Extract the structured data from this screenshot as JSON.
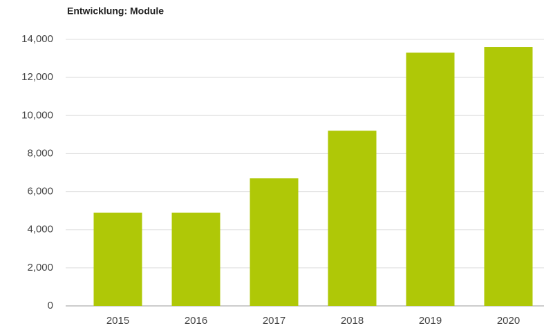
{
  "chart_data": {
    "type": "bar",
    "title": "Entwicklung: Module",
    "categories": [
      "2015",
      "2016",
      "2017",
      "2018",
      "2019",
      "2020"
    ],
    "values": [
      4900,
      4900,
      6700,
      9200,
      13300,
      13600
    ],
    "color": "#afc807",
    "ylim": [
      0,
      14000
    ],
    "yticks": [
      0,
      {
        "value": 2000,
        "label": "2,000"
      },
      {
        "value": 4000,
        "label": "4,000"
      },
      {
        "value": 6000,
        "label": "6,000"
      },
      {
        "value": 8000,
        "label": "8,000"
      },
      {
        "value": 10000,
        "label": "10,000"
      },
      {
        "value": 12000,
        "label": "12,000"
      },
      {
        "value": 14000,
        "label": "14,000"
      }
    ],
    "grid": true
  }
}
